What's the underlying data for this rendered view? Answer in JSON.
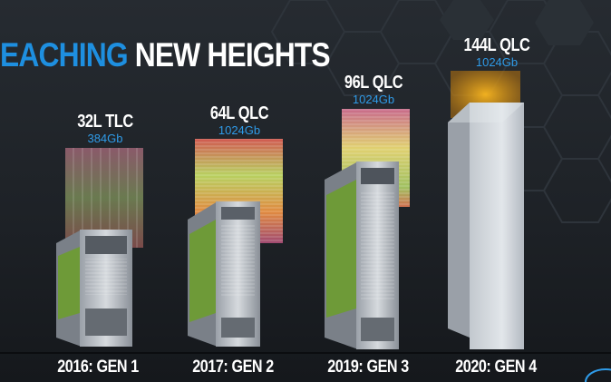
{
  "slide": {
    "title_accent": "EACHING",
    "title_main": "NEW HEIGHTS",
    "colors": {
      "accent": "#1e8fe0",
      "capacity_text": "#2f9be8",
      "background": "#22272d"
    }
  },
  "generations": [
    {
      "layers": "32L TLC",
      "capacity": "384Gb",
      "gen_label": "2016: GEN 1"
    },
    {
      "layers": "64L QLC",
      "capacity": "1024Gb",
      "gen_label": "2017: GEN 2"
    },
    {
      "layers": "96L QLC",
      "capacity": "1024Gb",
      "gen_label": "2019: GEN 3"
    },
    {
      "layers": "144L QLC",
      "capacity": "1024Gb",
      "gen_label": "2020: GEN 4"
    }
  ],
  "corner_logo": "intel-logo-partial"
}
